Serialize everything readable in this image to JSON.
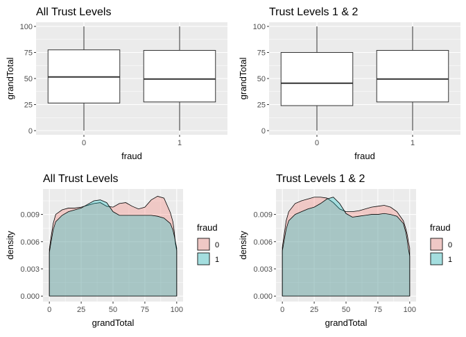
{
  "figure": {
    "colors": {
      "panel_bg": "#EBEBEB",
      "grid_major": "#FFFFFF",
      "text_dark": "#000000",
      "tick_text": "#4D4D4D",
      "box_fill": "#FFFFFF",
      "box_line": "#333333",
      "fill_fraud_0": "#F8766D",
      "fill_fraud_1": "#00BFC4",
      "fill_alpha": "0.3"
    }
  },
  "chart_data": [
    {
      "type": "box",
      "title": "All Trust Levels",
      "xlabel": "fraud",
      "ylabel": "grandTotal",
      "categories": [
        "0",
        "1"
      ],
      "ylim": [
        -4,
        104
      ],
      "yticks": [
        0,
        25,
        50,
        75,
        100
      ],
      "grid": true,
      "boxes": [
        {
          "category": "0",
          "min": 0,
          "q1": 26.5,
          "median": 51.5,
          "q3": 77.5,
          "max": 100
        },
        {
          "category": "1",
          "min": 0,
          "q1": 27.5,
          "median": 49.5,
          "q3": 77.0,
          "max": 100
        }
      ]
    },
    {
      "type": "box",
      "title": "Trust Levels 1 & 2",
      "xlabel": "fraud",
      "ylabel": "grandTotal",
      "categories": [
        "0",
        "1"
      ],
      "ylim": [
        -4,
        104
      ],
      "yticks": [
        0,
        25,
        50,
        75,
        100
      ],
      "grid": true,
      "boxes": [
        {
          "category": "0",
          "min": 0,
          "q1": 24.0,
          "median": 45.5,
          "q3": 75.0,
          "max": 100
        },
        {
          "category": "1",
          "min": 0,
          "q1": 27.5,
          "median": 49.5,
          "q3": 77.0,
          "max": 100
        }
      ]
    },
    {
      "type": "area",
      "title": "All Trust Levels",
      "xlabel": "grandTotal",
      "ylabel": "density",
      "xlim": [
        -5,
        105
      ],
      "ylim": [
        -0.0006,
        0.0118
      ],
      "xticks": [
        0,
        25,
        50,
        75,
        100
      ],
      "yticks": [
        0.0,
        0.003,
        0.006,
        0.009
      ],
      "ytick_labels": [
        "0.000",
        "0.003",
        "0.006",
        "0.009"
      ],
      "grid": true,
      "legend": {
        "title": "fraud",
        "position": "right"
      },
      "series": [
        {
          "name": "0",
          "x": [
            0,
            1,
            3,
            5,
            10,
            15,
            20,
            25,
            30,
            35,
            40,
            45,
            50,
            55,
            60,
            65,
            70,
            75,
            80,
            85,
            90,
            95,
            97,
            98,
            99,
            100
          ],
          "y": [
            0.0052,
            0.0062,
            0.008,
            0.009,
            0.0095,
            0.0097,
            0.0097,
            0.0098,
            0.01,
            0.0102,
            0.0103,
            0.0099,
            0.0098,
            0.0102,
            0.0103,
            0.0099,
            0.0096,
            0.0098,
            0.0106,
            0.011,
            0.0108,
            0.0092,
            0.0082,
            0.0072,
            0.0058,
            0.005
          ]
        },
        {
          "name": "1",
          "x": [
            0,
            1,
            3,
            5,
            10,
            15,
            20,
            25,
            30,
            35,
            40,
            45,
            50,
            55,
            60,
            65,
            70,
            75,
            80,
            85,
            90,
            95,
            97,
            98,
            99,
            100
          ],
          "y": [
            0.0048,
            0.0057,
            0.0073,
            0.0082,
            0.0089,
            0.0093,
            0.0095,
            0.0097,
            0.0101,
            0.0105,
            0.0106,
            0.0103,
            0.0093,
            0.0089,
            0.0089,
            0.0089,
            0.0089,
            0.0089,
            0.0089,
            0.0088,
            0.0086,
            0.008,
            0.0073,
            0.0067,
            0.006,
            0.0053
          ]
        }
      ]
    },
    {
      "type": "area",
      "title": "Trust Levels 1 & 2",
      "xlabel": "grandTotal",
      "ylabel": "density",
      "xlim": [
        -5,
        105
      ],
      "ylim": [
        -0.0006,
        0.0118
      ],
      "xticks": [
        0,
        25,
        50,
        75,
        100
      ],
      "yticks": [
        0.0,
        0.003,
        0.006,
        0.009
      ],
      "ytick_labels": [
        "0.000",
        "0.003",
        "0.006",
        "0.009"
      ],
      "grid": true,
      "legend": {
        "title": "fraud",
        "position": "right"
      },
      "series": [
        {
          "name": "0",
          "x": [
            0,
            1,
            3,
            5,
            10,
            15,
            20,
            25,
            30,
            35,
            40,
            45,
            50,
            55,
            60,
            65,
            70,
            75,
            80,
            85,
            90,
            95,
            97,
            98,
            99,
            100
          ],
          "y": [
            0.0054,
            0.0064,
            0.0083,
            0.0093,
            0.0102,
            0.0105,
            0.0107,
            0.0109,
            0.0109,
            0.0108,
            0.0103,
            0.0096,
            0.0093,
            0.0093,
            0.0094,
            0.0096,
            0.0098,
            0.0099,
            0.01,
            0.0098,
            0.0093,
            0.0083,
            0.0074,
            0.0068,
            0.006,
            0.0053
          ]
        },
        {
          "name": "1",
          "x": [
            0,
            1,
            3,
            5,
            10,
            15,
            20,
            25,
            30,
            35,
            40,
            45,
            50,
            55,
            60,
            65,
            70,
            75,
            80,
            85,
            90,
            95,
            97,
            98,
            99,
            100
          ],
          "y": [
            0.005,
            0.0058,
            0.0074,
            0.0083,
            0.009,
            0.0093,
            0.0096,
            0.0098,
            0.0102,
            0.0107,
            0.0109,
            0.0102,
            0.0091,
            0.0087,
            0.0088,
            0.0089,
            0.009,
            0.009,
            0.0091,
            0.009,
            0.0088,
            0.008,
            0.007,
            0.0062,
            0.0052,
            0.0044
          ]
        }
      ]
    }
  ]
}
